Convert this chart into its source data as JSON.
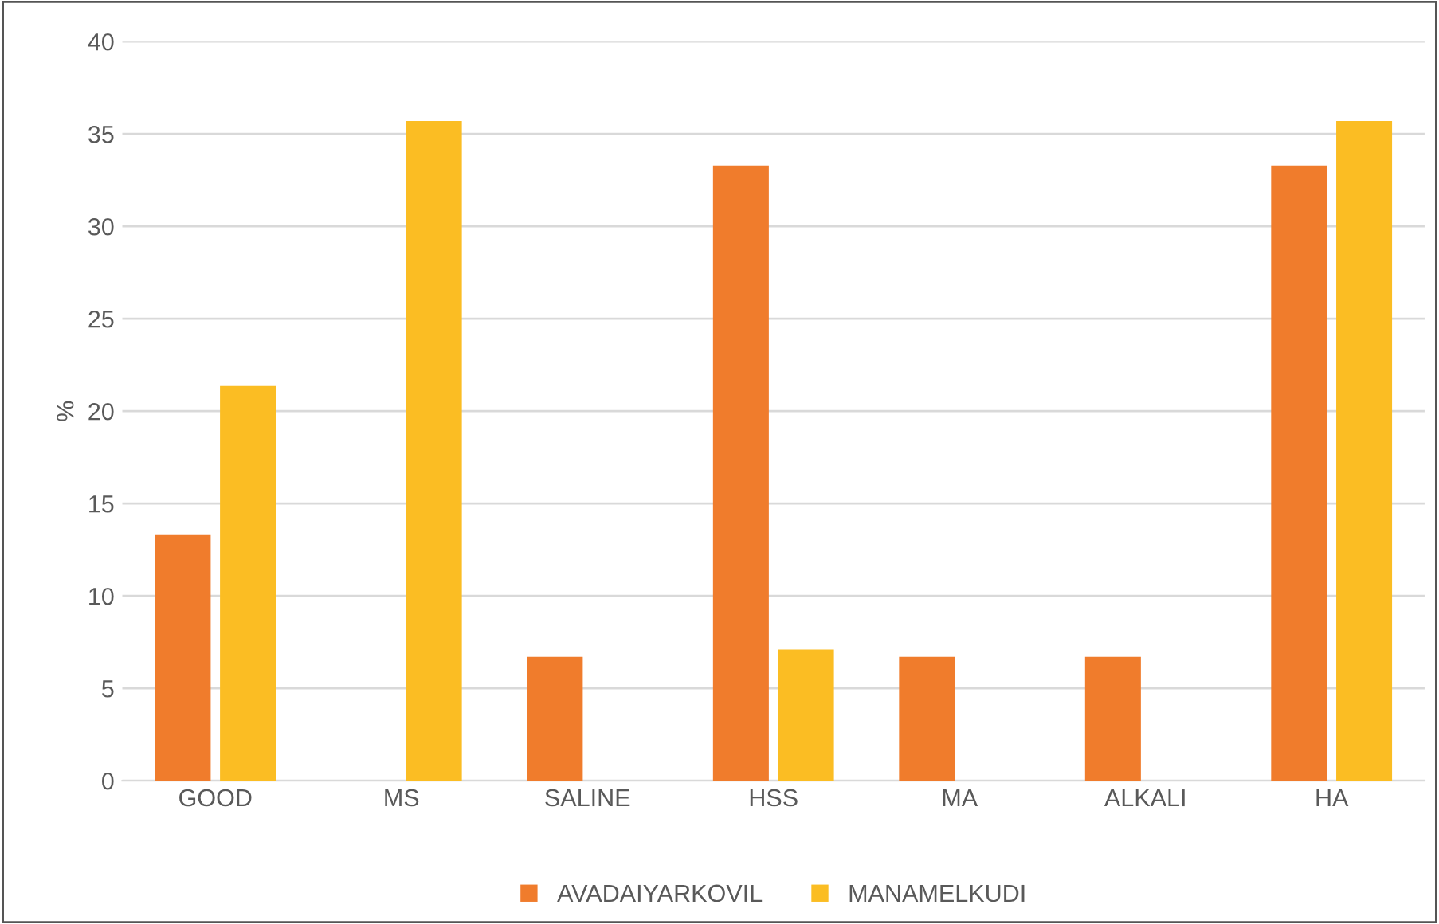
{
  "chart_data": {
    "type": "bar",
    "ylabel": "%",
    "categories": [
      "GOOD",
      "MS",
      "SALINE",
      "HSS",
      "MA",
      "ALKALI",
      "HA"
    ],
    "series": [
      {
        "name": "AVADAIYARKOVIL",
        "color": "#f07c2c",
        "values": [
          13.3,
          0,
          6.7,
          33.3,
          6.7,
          6.7,
          33.3
        ]
      },
      {
        "name": "MANAMELKUDI",
        "color": "#fbbd23",
        "values": [
          21.4,
          35.7,
          0,
          7.1,
          0,
          0,
          35.7
        ]
      }
    ],
    "ylim": [
      0,
      40
    ],
    "yticks": [
      0,
      5,
      10,
      15,
      20,
      25,
      30,
      35,
      40
    ],
    "grid": "y",
    "legend": "bottom"
  }
}
